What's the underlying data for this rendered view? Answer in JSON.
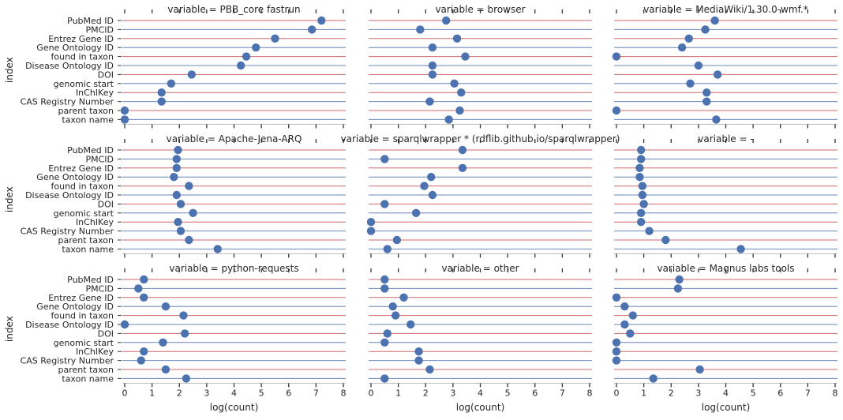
{
  "chart_data": {
    "type": "scatter",
    "layout": "facet-grid 3x3 with shared axes",
    "xlabel": "log(count)",
    "ylabel": "index",
    "xlim": [
      0,
      8
    ],
    "x_ticks": [
      "0",
      "1",
      "2",
      "3",
      "4",
      "5",
      "6",
      "7",
      "8"
    ],
    "grid": "horizontal row lines",
    "colors": {
      "point": "#4C72B0",
      "row_line_a": "#C44E52",
      "row_line_b": "#4C72B0",
      "spine": "#BBBBBB",
      "tick": "#333333"
    },
    "categories": [
      "PubMed ID",
      "PMCID",
      "Entrez Gene ID",
      "Gene Ontology ID",
      "found in taxon",
      "Disease Ontology ID",
      "DOI",
      "genomic start",
      "InChIKey",
      "CAS Registry Number",
      "parent taxon",
      "taxon name"
    ],
    "panels": [
      {
        "title": "variable = PBB_core fastrun",
        "values": [
          7.2,
          6.85,
          5.5,
          4.8,
          4.45,
          4.25,
          2.45,
          1.7,
          1.35,
          1.35,
          0.0,
          0.0
        ]
      },
      {
        "title": "variable = browser",
        "values": [
          2.75,
          1.8,
          3.15,
          2.25,
          3.45,
          2.25,
          2.25,
          3.05,
          3.3,
          2.15,
          3.25,
          2.85
        ]
      },
      {
        "title": "variable = MediaWiki/1.30.0-wmf.*",
        "values": [
          3.6,
          3.25,
          2.65,
          2.4,
          0.0,
          3.0,
          3.7,
          2.7,
          3.3,
          3.3,
          0.0,
          3.65
        ]
      },
      {
        "title": "variable = Apache-Jena-ARQ",
        "values": [
          1.95,
          1.9,
          1.9,
          1.8,
          2.35,
          1.9,
          2.05,
          2.5,
          1.95,
          2.05,
          2.35,
          3.4
        ]
      },
      {
        "title": "variable = sparqlwrapper * (rdflib.github.io/sparqlwrapper)",
        "values": [
          3.35,
          0.5,
          3.35,
          2.2,
          1.95,
          2.25,
          0.5,
          1.65,
          0.0,
          0.0,
          0.95,
          0.6
        ]
      },
      {
        "title": "variable = -",
        "values": [
          0.9,
          0.9,
          0.85,
          0.85,
          0.95,
          0.95,
          1.0,
          0.9,
          0.9,
          1.2,
          1.8,
          4.55
        ]
      },
      {
        "title": "variable = python-requests",
        "values": [
          0.7,
          0.5,
          0.7,
          1.5,
          2.15,
          0.0,
          2.2,
          1.4,
          0.7,
          0.6,
          1.5,
          2.25
        ]
      },
      {
        "title": "variable = other",
        "values": [
          0.5,
          0.5,
          1.2,
          0.8,
          0.9,
          1.45,
          0.6,
          0.5,
          1.75,
          1.75,
          2.15,
          0.5
        ]
      },
      {
        "title": "variable = Magnus labs tools",
        "values": [
          2.3,
          2.25,
          0.0,
          0.3,
          0.6,
          0.3,
          0.5,
          0.0,
          0.0,
          0.0,
          3.05,
          1.35
        ]
      }
    ]
  }
}
